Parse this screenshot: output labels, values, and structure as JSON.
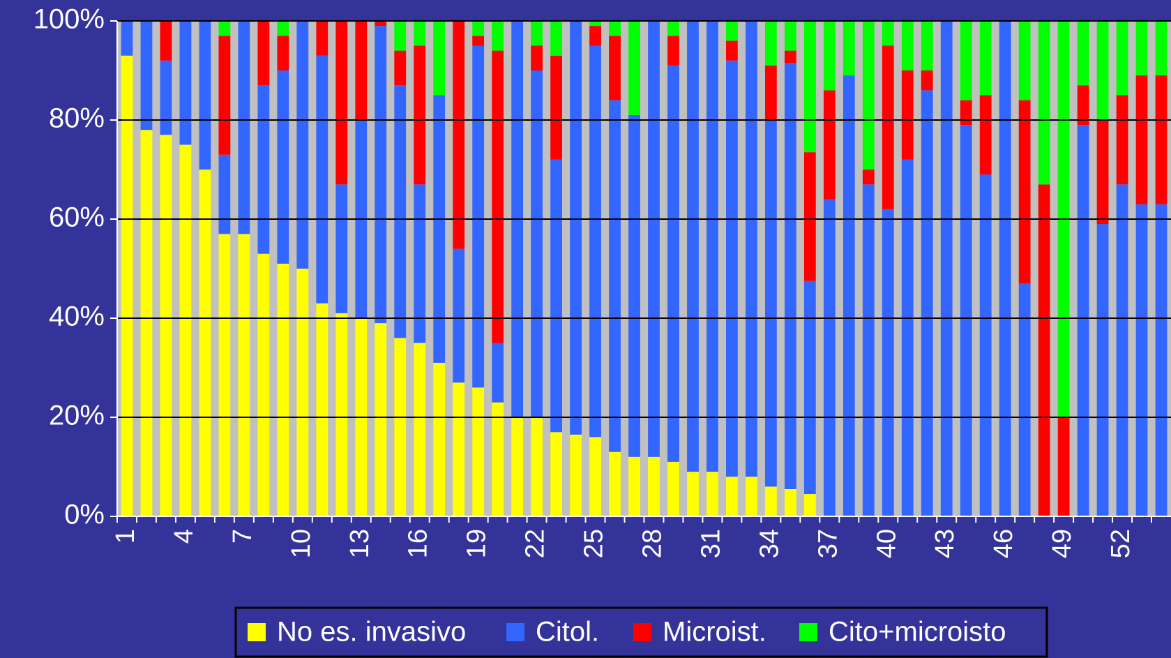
{
  "chart_data": {
    "type": "stacked_bar_100",
    "categories": [
      "1",
      null,
      null,
      "4",
      null,
      null,
      "7",
      null,
      null,
      "10",
      null,
      null,
      "13",
      null,
      null,
      "16",
      null,
      null,
      "19",
      null,
      null,
      "22",
      null,
      null,
      "25",
      null,
      null,
      "28",
      null,
      null,
      "31",
      null,
      null,
      "34",
      null,
      null,
      "37",
      null,
      null,
      "40",
      null,
      null,
      "43",
      null,
      null,
      "46",
      null,
      null,
      "49",
      null,
      null,
      "52",
      null,
      null
    ],
    "series": [
      {
        "name": "No es. invasivo",
        "color": "#ffff00",
        "values": [
          93,
          78,
          77,
          75,
          70,
          57,
          57,
          53,
          51,
          50,
          43,
          41,
          40,
          39,
          36,
          35,
          31,
          27,
          26,
          23,
          20,
          20,
          17,
          16.5,
          16,
          13,
          12,
          12,
          11,
          9,
          9,
          8,
          8,
          6,
          5.5,
          4.5,
          0,
          0,
          0,
          0,
          0,
          0,
          0,
          0,
          0,
          0,
          0,
          0,
          0,
          0,
          0,
          0,
          0,
          0
        ]
      },
      {
        "name": "Citol.",
        "color": "#3366ff",
        "values": [
          7,
          22,
          15,
          25,
          30,
          16,
          43,
          34,
          39,
          50,
          50,
          26,
          40,
          60,
          51,
          32,
          54,
          27,
          69,
          12,
          80,
          70,
          55,
          83.5,
          79,
          71,
          69,
          88,
          80,
          91,
          91,
          84,
          92,
          74,
          86,
          43,
          64,
          89,
          67,
          62,
          72,
          86,
          100,
          79,
          69,
          100,
          47,
          0,
          0,
          79,
          59,
          67,
          63,
          63
        ]
      },
      {
        "name": "Microist.",
        "color": "#ff0000",
        "values": [
          0,
          0,
          8,
          0,
          0,
          24,
          0,
          13,
          7,
          0,
          7,
          33,
          20,
          1,
          7,
          28,
          0,
          46,
          2,
          59,
          0,
          5,
          21,
          0,
          4,
          13,
          0,
          0,
          6,
          0,
          0,
          4,
          0,
          11,
          2.5,
          26,
          22,
          0,
          3,
          33,
          18,
          4,
          0,
          5,
          16,
          0,
          37,
          67,
          20,
          8,
          21,
          18,
          26,
          26
        ]
      },
      {
        "name": "Cito+microisto",
        "color": "#00ff00",
        "values": [
          0,
          0,
          0,
          0,
          0,
          3,
          0,
          0,
          3,
          0,
          0,
          0,
          0,
          0,
          6,
          5,
          15,
          0,
          3,
          6,
          0,
          5,
          7,
          0,
          1,
          3,
          19,
          0,
          3,
          0,
          0,
          4,
          0,
          9,
          6,
          26.5,
          14,
          11,
          30,
          5,
          10,
          10,
          0,
          16,
          15,
          0,
          16,
          33,
          80,
          13,
          20,
          15,
          11,
          11
        ]
      }
    ],
    "ylim": [
      0,
      100
    ],
    "yticks": [
      {
        "value": 0,
        "label": "0%"
      },
      {
        "value": 20,
        "label": "20%"
      },
      {
        "value": 40,
        "label": "40%"
      },
      {
        "value": 60,
        "label": "60%"
      },
      {
        "value": 80,
        "label": "80%"
      },
      {
        "value": 100,
        "label": "100%"
      }
    ],
    "grid": true,
    "legend": "bottom"
  }
}
